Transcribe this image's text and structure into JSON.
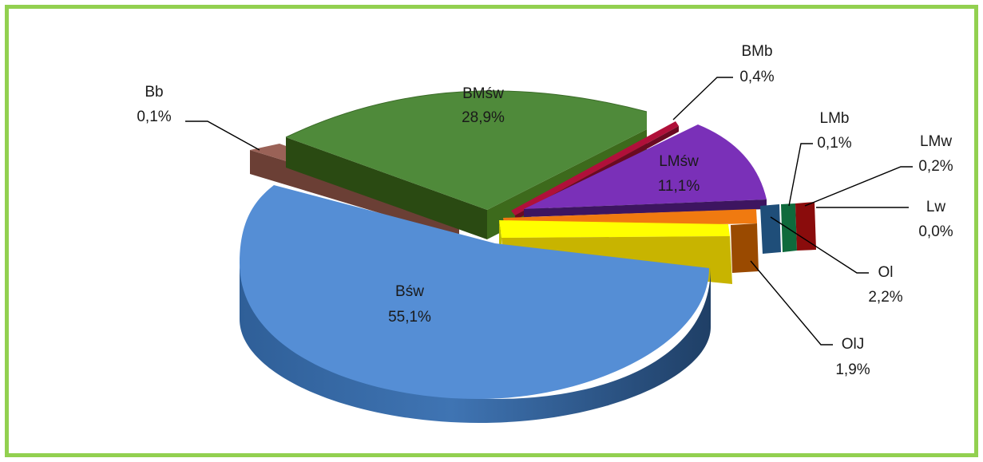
{
  "chart_data": {
    "type": "pie",
    "three_d": true,
    "exploded": true,
    "title": "",
    "slices": [
      {
        "label": "Bśw",
        "value": 55.1,
        "display": "55,1%",
        "color": "#558ed5"
      },
      {
        "label": "BMśw",
        "value": 28.9,
        "display": "28,9%",
        "color": "#4f8a3a"
      },
      {
        "label": "BMb",
        "value": 0.4,
        "display": "0,4%",
        "color": "#b0103a"
      },
      {
        "label": "LMśw",
        "value": 11.1,
        "display": "11,1%",
        "color": "#7a30b8"
      },
      {
        "label": "LMb",
        "value": 0.1,
        "display": "0,1%",
        "color": "#1f5a8c"
      },
      {
        "label": "LMw",
        "value": 0.2,
        "display": "0,2%",
        "color": "#0f6a3c"
      },
      {
        "label": "Lw",
        "value": 0.0,
        "display": "0,0%",
        "color": "#9a1010"
      },
      {
        "label": "Ol",
        "value": 2.2,
        "display": "2,2%",
        "color": "#f07a10"
      },
      {
        "label": "OlJ",
        "value": 1.9,
        "display": "1,9%",
        "color": "#f5f000"
      },
      {
        "label": "Bb",
        "value": 0.1,
        "display": "0,1%",
        "color": "#7a4a40"
      }
    ],
    "legend": "none"
  }
}
